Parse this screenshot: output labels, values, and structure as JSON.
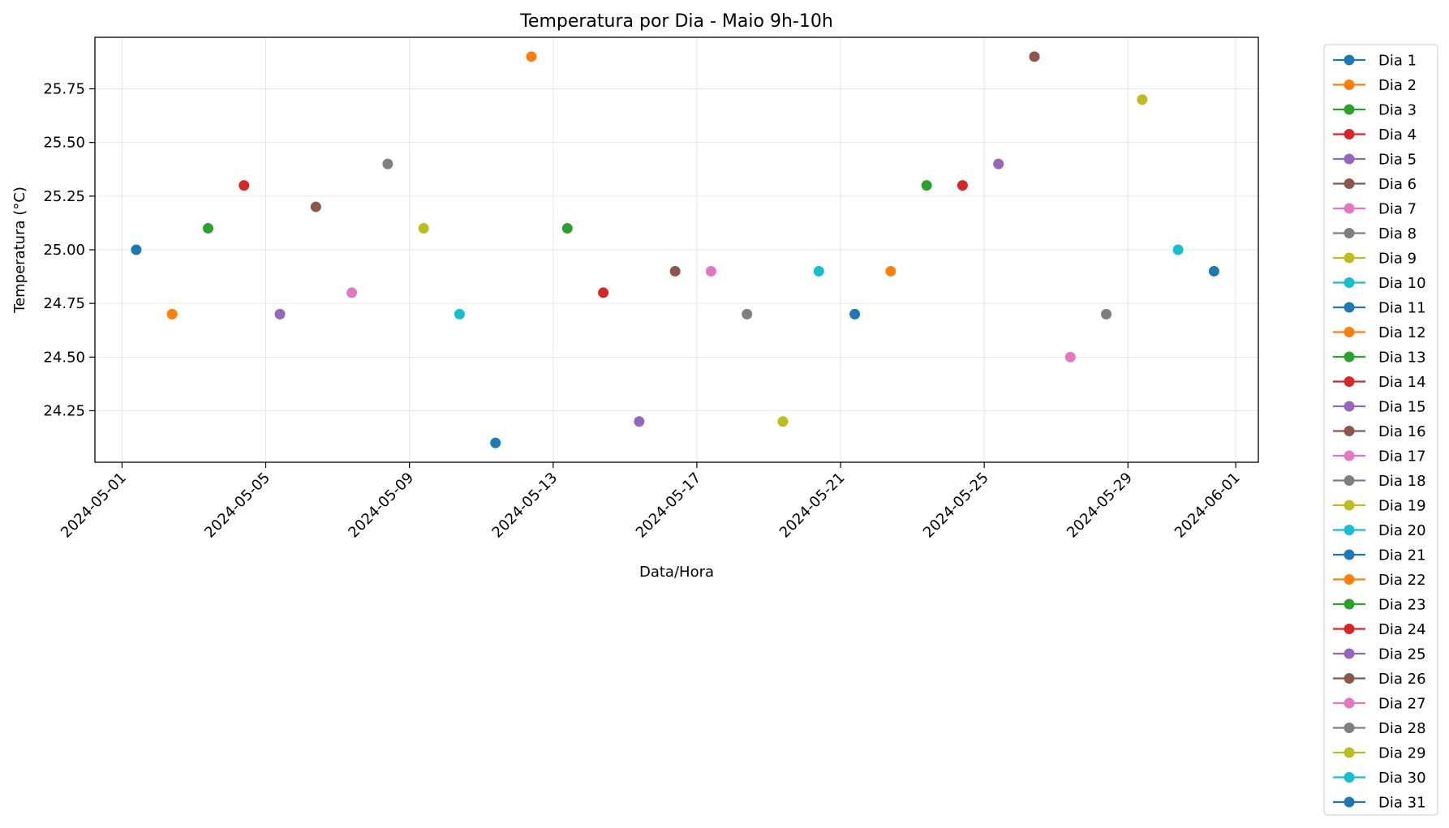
{
  "chart_data": {
    "type": "scatter",
    "title": "Temperatura por Dia - Maio 9h-10h",
    "xlabel": "Data/Hora",
    "ylabel": "Temperatura (°C)",
    "xlim": [
      "2024-04-30T05:54",
      "2024-06-01T15:06"
    ],
    "ylim": [
      24.01,
      25.99
    ],
    "x_ticks": [
      "2024-05-01",
      "2024-05-05",
      "2024-05-09",
      "2024-05-13",
      "2024-05-17",
      "2024-05-21",
      "2024-05-25",
      "2024-05-29",
      "2024-06-01"
    ],
    "y_ticks": [
      24.25,
      24.5,
      24.75,
      25.0,
      25.25,
      25.5,
      25.75
    ],
    "y_tick_labels": [
      "24.25",
      "24.50",
      "24.75",
      "25.00",
      "25.25",
      "25.50",
      "25.75"
    ],
    "grid": true,
    "legend_position": "outside-right",
    "series": [
      {
        "name": "Dia 1",
        "color": "#1f77b4",
        "points": [
          {
            "x": "2024-05-01T09:30",
            "y": 25.0
          }
        ]
      },
      {
        "name": "Dia 2",
        "color": "#ff7f0e",
        "points": [
          {
            "x": "2024-05-02T09:30",
            "y": 24.7
          }
        ]
      },
      {
        "name": "Dia 3",
        "color": "#2ca02c",
        "points": [
          {
            "x": "2024-05-03T09:30",
            "y": 25.1
          }
        ]
      },
      {
        "name": "Dia 4",
        "color": "#d62728",
        "points": [
          {
            "x": "2024-05-04T09:30",
            "y": 25.3
          }
        ]
      },
      {
        "name": "Dia 5",
        "color": "#9467bd",
        "points": [
          {
            "x": "2024-05-05T09:30",
            "y": 24.7
          }
        ]
      },
      {
        "name": "Dia 6",
        "color": "#8c564b",
        "points": [
          {
            "x": "2024-05-06T09:30",
            "y": 25.2
          }
        ]
      },
      {
        "name": "Dia 7",
        "color": "#e377c2",
        "points": [
          {
            "x": "2024-05-07T09:30",
            "y": 24.8
          }
        ]
      },
      {
        "name": "Dia 8",
        "color": "#7f7f7f",
        "points": [
          {
            "x": "2024-05-08T09:30",
            "y": 25.4
          }
        ]
      },
      {
        "name": "Dia 9",
        "color": "#bcbd22",
        "points": [
          {
            "x": "2024-05-09T09:30",
            "y": 25.1
          }
        ]
      },
      {
        "name": "Dia 10",
        "color": "#17becf",
        "points": [
          {
            "x": "2024-05-10T09:30",
            "y": 24.7
          }
        ]
      },
      {
        "name": "Dia 11",
        "color": "#1f77b4",
        "points": [
          {
            "x": "2024-05-11T09:30",
            "y": 24.1
          }
        ]
      },
      {
        "name": "Dia 12",
        "color": "#ff7f0e",
        "points": [
          {
            "x": "2024-05-12T09:30",
            "y": 25.9
          }
        ]
      },
      {
        "name": "Dia 13",
        "color": "#2ca02c",
        "points": [
          {
            "x": "2024-05-13T09:30",
            "y": 25.1
          }
        ]
      },
      {
        "name": "Dia 14",
        "color": "#d62728",
        "points": [
          {
            "x": "2024-05-14T09:30",
            "y": 24.8
          }
        ]
      },
      {
        "name": "Dia 15",
        "color": "#9467bd",
        "points": [
          {
            "x": "2024-05-15T09:30",
            "y": 24.2
          }
        ]
      },
      {
        "name": "Dia 16",
        "color": "#8c564b",
        "points": [
          {
            "x": "2024-05-16T09:30",
            "y": 24.9
          }
        ]
      },
      {
        "name": "Dia 17",
        "color": "#e377c2",
        "points": [
          {
            "x": "2024-05-17T09:30",
            "y": 24.9
          }
        ]
      },
      {
        "name": "Dia 18",
        "color": "#7f7f7f",
        "points": [
          {
            "x": "2024-05-18T09:30",
            "y": 24.7
          }
        ]
      },
      {
        "name": "Dia 19",
        "color": "#bcbd22",
        "points": [
          {
            "x": "2024-05-19T09:30",
            "y": 24.2
          }
        ]
      },
      {
        "name": "Dia 20",
        "color": "#17becf",
        "points": [
          {
            "x": "2024-05-20T09:30",
            "y": 24.9
          }
        ]
      },
      {
        "name": "Dia 21",
        "color": "#1f77b4",
        "points": [
          {
            "x": "2024-05-21T09:30",
            "y": 24.7
          }
        ]
      },
      {
        "name": "Dia 22",
        "color": "#ff7f0e",
        "points": [
          {
            "x": "2024-05-22T09:30",
            "y": 24.9
          }
        ]
      },
      {
        "name": "Dia 23",
        "color": "#2ca02c",
        "points": [
          {
            "x": "2024-05-23T09:30",
            "y": 25.3
          }
        ]
      },
      {
        "name": "Dia 24",
        "color": "#d62728",
        "points": [
          {
            "x": "2024-05-24T09:30",
            "y": 25.3
          }
        ]
      },
      {
        "name": "Dia 25",
        "color": "#9467bd",
        "points": [
          {
            "x": "2024-05-25T09:30",
            "y": 25.4
          }
        ]
      },
      {
        "name": "Dia 26",
        "color": "#8c564b",
        "points": [
          {
            "x": "2024-05-26T09:30",
            "y": 25.9
          }
        ]
      },
      {
        "name": "Dia 27",
        "color": "#e377c2",
        "points": [
          {
            "x": "2024-05-27T09:30",
            "y": 24.5
          }
        ]
      },
      {
        "name": "Dia 28",
        "color": "#7f7f7f",
        "points": [
          {
            "x": "2024-05-28T09:30",
            "y": 24.7
          }
        ]
      },
      {
        "name": "Dia 29",
        "color": "#bcbd22",
        "points": [
          {
            "x": "2024-05-29T09:30",
            "y": 25.7
          }
        ]
      },
      {
        "name": "Dia 30",
        "color": "#17becf",
        "points": [
          {
            "x": "2024-05-30T09:30",
            "y": 25.0
          }
        ]
      },
      {
        "name": "Dia 31",
        "color": "#1f77b4",
        "points": [
          {
            "x": "2024-05-31T09:30",
            "y": 24.9
          }
        ]
      }
    ]
  }
}
